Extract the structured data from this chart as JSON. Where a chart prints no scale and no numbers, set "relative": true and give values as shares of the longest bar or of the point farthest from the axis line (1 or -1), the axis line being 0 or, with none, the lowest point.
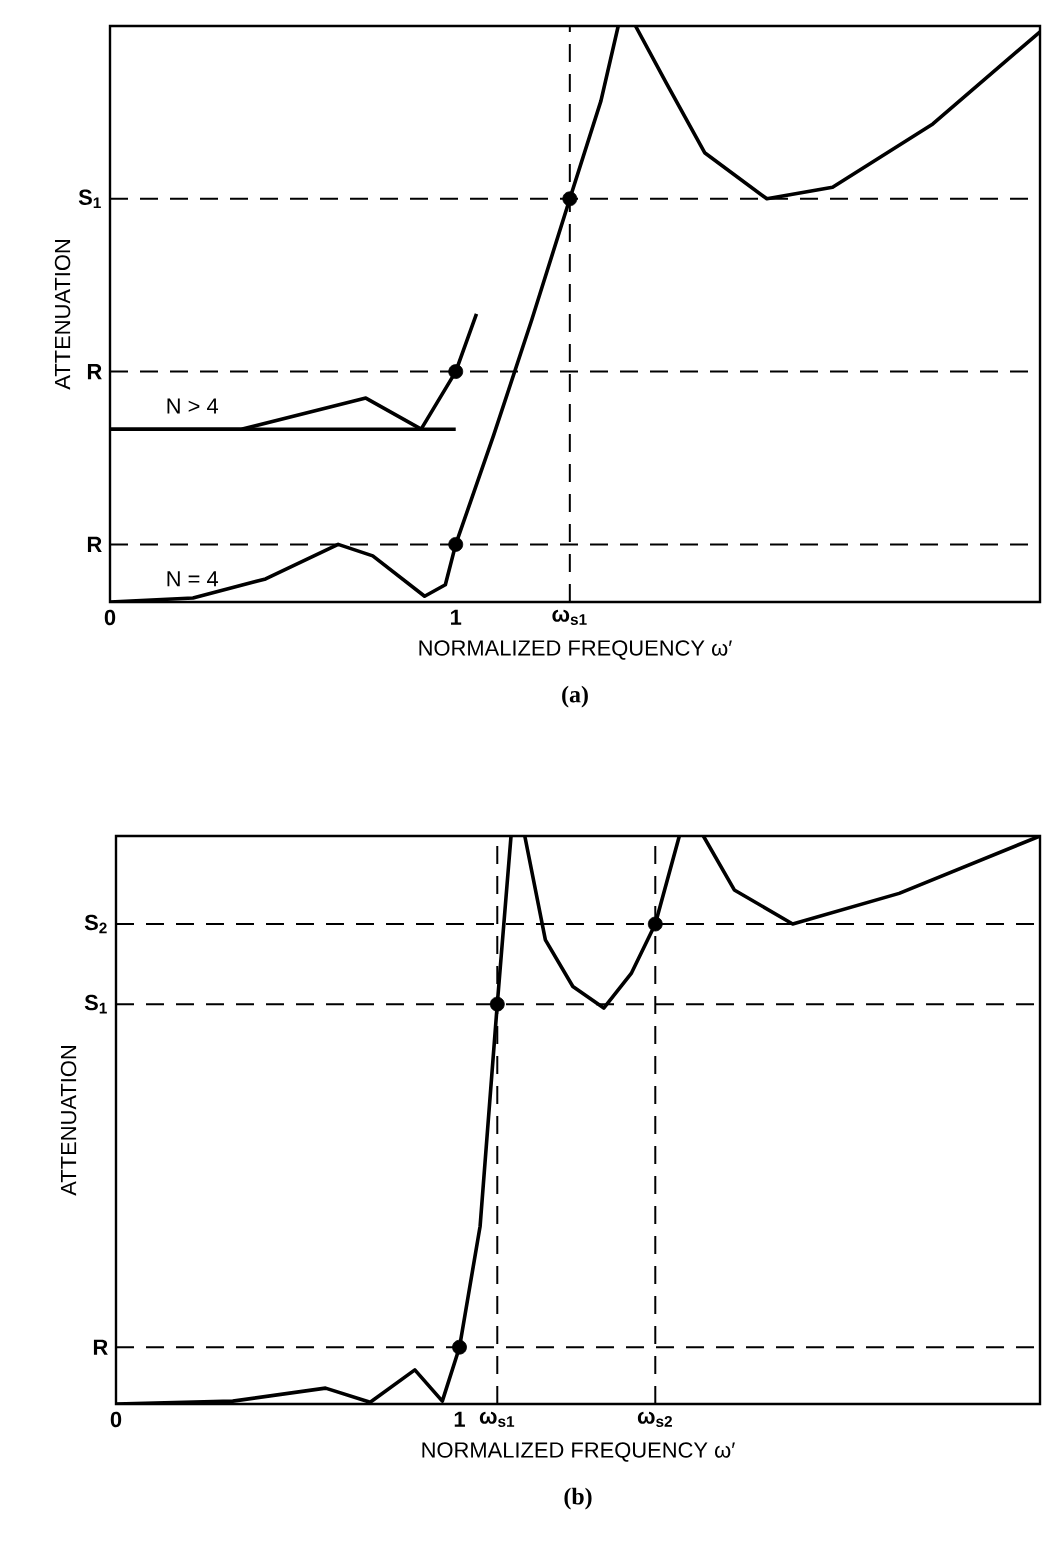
{
  "chart_data": [
    {
      "type": "line",
      "relative": true,
      "xlabel": "NORMALIZED FREQUENCY ω′",
      "ylabel": "ATTENUATION",
      "xlim": [
        0,
        2.69
      ],
      "xticks": [
        0,
        1,
        {
          "value": 1.33,
          "label": "ω$_{s1}$"
        }
      ],
      "series": [
        {
          "name": "N = 4",
          "color": "#000000",
          "x": [
            0,
            0.24,
            0.45,
            0.66,
            0.76,
            0.91,
            0.97,
            1.0,
            1.11,
            1.22,
            1.33,
            1.42,
            1.47,
            1.495,
            1.52,
            1.61,
            1.72,
            1.9,
            2.09,
            2.38,
            2.69
          ],
          "values": [
            0,
            0.007,
            0.04,
            0.1,
            0.08,
            0.01,
            0.03,
            0.1,
            0.29,
            0.49,
            0.7,
            0.87,
            1.0,
            null,
            1.0,
            0.9,
            0.78,
            0.7,
            0.72,
            0.83,
            0.99
          ]
        },
        {
          "name": "N > 4",
          "color": "#000000",
          "x": [
            0,
            0.38,
            0.74,
            0.9,
            1.0,
            1.06
          ],
          "values": [
            0.3,
            0.3,
            0.354,
            0.3,
            0.4,
            0.5
          ]
        },
        {
          "color": "#000000",
          "x": [
            0,
            1.0
          ],
          "values": [
            0.3,
            0.3
          ]
        },
        {
          "type": "scatter",
          "color": "#000000",
          "marker": "circle",
          "x": [
            1.0,
            1.0,
            1.33
          ],
          "values": [
            0.1,
            0.4,
            0.7
          ]
        }
      ],
      "ref_lines": [
        {
          "axis": "y",
          "value": 0.1,
          "label": "R"
        },
        {
          "axis": "y",
          "value": 0.4,
          "label": "R"
        },
        {
          "axis": "y",
          "value": 0.7,
          "label": "S$_{1}$"
        },
        {
          "axis": "x",
          "value": 1.33
        }
      ],
      "annotations": [
        "(a)"
      ]
    },
    {
      "type": "line",
      "relative": true,
      "xlabel": "NORMALIZED FREQUENCY ω′",
      "ylabel": "ATTENUATION",
      "xlim": [
        0,
        2.69
      ],
      "xticks": [
        0,
        1,
        {
          "value": 1.11,
          "label": "ω$_{s1}$"
        },
        {
          "value": 1.57,
          "label": "ω$_{s2}$"
        }
      ],
      "series": [
        {
          "color": "#000000",
          "x": [
            0,
            0.34,
            0.61,
            0.74,
            0.87,
            0.95,
            1.0,
            1.06,
            1.11,
            1.15,
            1.17,
            1.19,
            1.25,
            1.33,
            1.42,
            1.5,
            1.57,
            1.64,
            1.675,
            1.71,
            1.8,
            1.97,
            2.28,
            2.69
          ],
          "values": [
            0,
            0.005,
            0.028,
            0.003,
            0.06,
            0.005,
            0.1,
            0.313,
            0.704,
            1.0,
            null,
            1.0,
            0.817,
            0.735,
            0.697,
            0.758,
            0.845,
            1.0,
            null,
            1.0,
            0.905,
            0.845,
            0.899,
            1.0
          ]
        },
        {
          "type": "scatter",
          "color": "#000000",
          "marker": "circle",
          "x": [
            1.0,
            1.11,
            1.57
          ],
          "values": [
            0.1,
            0.704,
            0.845
          ]
        }
      ],
      "ref_lines": [
        {
          "axis": "y",
          "value": 0.1,
          "label": "R"
        },
        {
          "axis": "y",
          "value": 0.704,
          "label": "S$_{1}$"
        },
        {
          "axis": "y",
          "value": 0.845,
          "label": "S$_{2}$"
        },
        {
          "axis": "x",
          "value": 1.11
        },
        {
          "axis": "x",
          "value": 1.57
        }
      ],
      "annotations": [
        "(b)"
      ]
    }
  ]
}
